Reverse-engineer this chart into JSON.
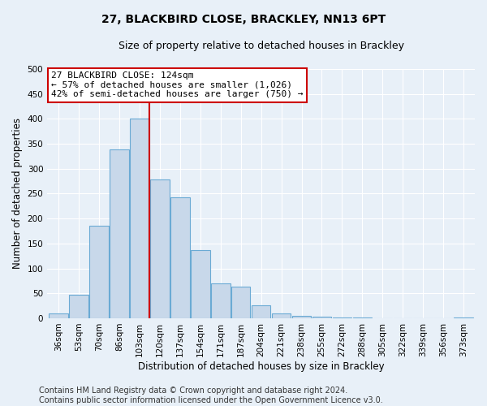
{
  "title": "27, BLACKBIRD CLOSE, BRACKLEY, NN13 6PT",
  "subtitle": "Size of property relative to detached houses in Brackley",
  "xlabel": "Distribution of detached houses by size in Brackley",
  "ylabel": "Number of detached properties",
  "bar_labels": [
    "36sqm",
    "53sqm",
    "70sqm",
    "86sqm",
    "103sqm",
    "120sqm",
    "137sqm",
    "154sqm",
    "171sqm",
    "187sqm",
    "204sqm",
    "221sqm",
    "238sqm",
    "255sqm",
    "272sqm",
    "288sqm",
    "305sqm",
    "322sqm",
    "339sqm",
    "356sqm",
    "373sqm"
  ],
  "bar_heights": [
    10,
    47,
    185,
    338,
    400,
    278,
    242,
    137,
    70,
    63,
    26,
    10,
    5,
    3,
    1,
    1,
    0,
    0,
    0,
    0,
    2
  ],
  "bar_color": "#c8d8ea",
  "bar_edge_color": "#6aaad4",
  "vline_x_index": 5,
  "vline_color": "#cc0000",
  "ylim": [
    0,
    500
  ],
  "yticks": [
    0,
    50,
    100,
    150,
    200,
    250,
    300,
    350,
    400,
    450,
    500
  ],
  "annotation_title": "27 BLACKBIRD CLOSE: 124sqm",
  "annotation_line1": "← 57% of detached houses are smaller (1,026)",
  "annotation_line2": "42% of semi-detached houses are larger (750) →",
  "annotation_box_facecolor": "#ffffff",
  "annotation_box_edgecolor": "#cc0000",
  "footer_line1": "Contains HM Land Registry data © Crown copyright and database right 2024.",
  "footer_line2": "Contains public sector information licensed under the Open Government Licence v3.0.",
  "bg_color": "#e8f0f8",
  "plot_bg_color": "#e8f0f8",
  "grid_color": "#ffffff",
  "title_fontsize": 10,
  "subtitle_fontsize": 9,
  "axis_label_fontsize": 8.5,
  "tick_fontsize": 7.5,
  "footer_fontsize": 7
}
